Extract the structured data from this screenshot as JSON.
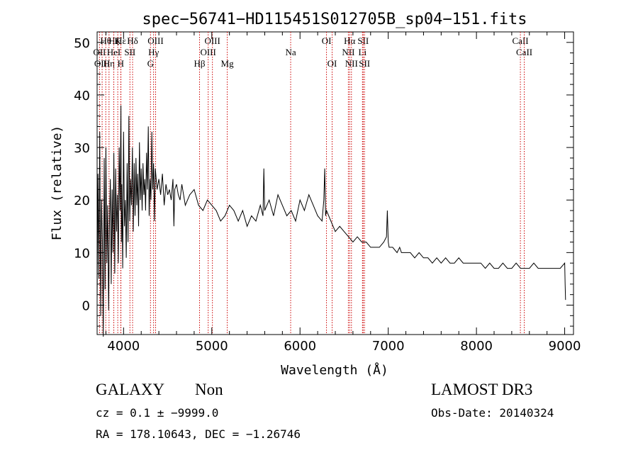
{
  "chart_data": {
    "type": "line",
    "title": "spec−56741−HD115451S012705B_sp04−151.fits",
    "xlabel": "Wavelength (Å)",
    "ylabel": "Flux (relative)",
    "xlim": [
      3700,
      9100
    ],
    "ylim": [
      -5.6,
      52
    ],
    "xticks": [
      4000,
      5000,
      6000,
      7000,
      8000,
      9000
    ],
    "xtick_labels": [
      "4000",
      "5000",
      "6000",
      "7000",
      "8000",
      "9000"
    ],
    "yticks": [
      0,
      10,
      20,
      30,
      40,
      50
    ],
    "ytick_labels": [
      "0",
      "10",
      "20",
      "30",
      "40",
      "50"
    ],
    "series": [
      {
        "name": "flux",
        "color": "#000000",
        "x": [
          3700,
          3710,
          3720,
          3730,
          3740,
          3750,
          3760,
          3770,
          3780,
          3790,
          3800,
          3810,
          3820,
          3830,
          3840,
          3850,
          3860,
          3870,
          3880,
          3890,
          3900,
          3910,
          3920,
          3930,
          3940,
          3950,
          3960,
          3970,
          3975,
          3980,
          3990,
          4000,
          4010,
          4020,
          4030,
          4040,
          4050,
          4060,
          4070,
          4080,
          4090,
          4100,
          4110,
          4120,
          4130,
          4140,
          4150,
          4160,
          4170,
          4180,
          4190,
          4200,
          4210,
          4220,
          4230,
          4240,
          4250,
          4260,
          4270,
          4280,
          4290,
          4300,
          4310,
          4320,
          4330,
          4340,
          4350,
          4360,
          4380,
          4400,
          4420,
          4440,
          4460,
          4480,
          4500,
          4520,
          4540,
          4560,
          4570,
          4580,
          4600,
          4620,
          4640,
          4660,
          4700,
          4750,
          4800,
          4850,
          4900,
          4950,
          5000,
          5050,
          5100,
          5150,
          5200,
          5250,
          5300,
          5350,
          5400,
          5450,
          5500,
          5550,
          5580,
          5590,
          5600,
          5650,
          5700,
          5750,
          5800,
          5850,
          5900,
          5950,
          6000,
          6050,
          6100,
          6150,
          6200,
          6250,
          6270,
          6280,
          6290,
          6300,
          6350,
          6400,
          6450,
          6500,
          6550,
          6600,
          6650,
          6700,
          6750,
          6800,
          6850,
          6900,
          6950,
          6980,
          6990,
          7000,
          7010,
          7050,
          7100,
          7130,
          7150,
          7200,
          7250,
          7300,
          7350,
          7400,
          7450,
          7500,
          7550,
          7600,
          7650,
          7700,
          7750,
          7800,
          7850,
          7900,
          7950,
          8000,
          8050,
          8100,
          8150,
          8200,
          8250,
          8300,
          8350,
          8400,
          8450,
          8500,
          8550,
          8600,
          8650,
          8700,
          8750,
          8800,
          8850,
          8900,
          8950,
          9000,
          9005,
          9010
        ],
        "y": [
          1,
          25,
          5,
          33,
          -2,
          20,
          12,
          -6,
          28,
          3,
          30,
          8,
          19,
          -1,
          15,
          24,
          4,
          22,
          10,
          29,
          6,
          26,
          14,
          21,
          8,
          30,
          18,
          38,
          12,
          23,
          7,
          33,
          15,
          20,
          9,
          27,
          12,
          36,
          16,
          24,
          19,
          30,
          14,
          27,
          17,
          28,
          19,
          25,
          15,
          31,
          20,
          26,
          18,
          27,
          21,
          24,
          18,
          29,
          22,
          34,
          17,
          24,
          20,
          33,
          22,
          27,
          16,
          26,
          22,
          24,
          21,
          25,
          19,
          23,
          21,
          22,
          20,
          24,
          15,
          22,
          23,
          21,
          20,
          23,
          19,
          21,
          22,
          19,
          18,
          20,
          19,
          18,
          16,
          17,
          19,
          18,
          16,
          18,
          15,
          17,
          16,
          19,
          17,
          26,
          18,
          20,
          17,
          21,
          19,
          17,
          18,
          16,
          20,
          18,
          21,
          19,
          17,
          16,
          20,
          26,
          17,
          18,
          16,
          14,
          15,
          14,
          13,
          12,
          13,
          12,
          12,
          11,
          11,
          11,
          12,
          13,
          18,
          12,
          11,
          11,
          10,
          11,
          10,
          10,
          10,
          9,
          10,
          9,
          9,
          8,
          9,
          8,
          9,
          8,
          8,
          9,
          8,
          8,
          8,
          8,
          8,
          7,
          8,
          7,
          7,
          8,
          7,
          7,
          8,
          7,
          7,
          7,
          8,
          7,
          7,
          7,
          7,
          7,
          7,
          8,
          4,
          1
        ]
      }
    ],
    "line_markers": [
      {
        "label": "OII",
        "wavelength": 3727,
        "row": 1
      },
      {
        "label": "OIII",
        "wavelength": 3757,
        "row": 2
      },
      {
        "label": "Hθ",
        "wavelength": 3798,
        "row": 0
      },
      {
        "label": "Hη",
        "wavelength": 3835,
        "row": 2
      },
      {
        "label": "Hζ",
        "wavelength": 3889,
        "row": 0
      },
      {
        "label": "HeI",
        "wavelength": 3889,
        "row": 1
      },
      {
        "label": "K",
        "wavelength": 3934,
        "row": 0
      },
      {
        "label": "H",
        "wavelength": 3968,
        "row": 2
      },
      {
        "label": "Hε",
        "wavelength": 3970,
        "row": 0
      },
      {
        "label": "SII",
        "wavelength": 4072,
        "row": 1
      },
      {
        "label": "Hδ",
        "wavelength": 4102,
        "row": 0
      },
      {
        "label": "Hγ",
        "wavelength": 4340,
        "row": 1
      },
      {
        "label": "G",
        "wavelength": 4305,
        "row": 2
      },
      {
        "label": "OIII",
        "wavelength": 4363,
        "row": 0
      },
      {
        "label": "Hβ",
        "wavelength": 4861,
        "row": 2
      },
      {
        "label": "OIII",
        "wavelength": 4959,
        "row": 1
      },
      {
        "label": "OIII",
        "wavelength": 5007,
        "row": 0
      },
      {
        "label": "Mg",
        "wavelength": 5175,
        "row": 2
      },
      {
        "label": "Na",
        "wavelength": 5894,
        "row": 1
      },
      {
        "label": "OI",
        "wavelength": 6300,
        "row": 0
      },
      {
        "label": "OI",
        "wavelength": 6364,
        "row": 2
      },
      {
        "label": "NII",
        "wavelength": 6548,
        "row": 1
      },
      {
        "label": "Hα",
        "wavelength": 6563,
        "row": 0
      },
      {
        "label": "NII",
        "wavelength": 6583,
        "row": 2
      },
      {
        "label": "Li",
        "wavelength": 6708,
        "row": 1
      },
      {
        "label": "SII",
        "wavelength": 6716,
        "row": 0
      },
      {
        "label": "SII",
        "wavelength": 6731,
        "row": 2
      },
      {
        "label": "CaII",
        "wavelength": 8498,
        "row": 0
      },
      {
        "label": "CaII",
        "wavelength": 8542,
        "row": 1
      }
    ],
    "marker_color": "#cc0000"
  },
  "footer": {
    "class_label": "GALAXY",
    "subclass_label": "Non",
    "survey_label": "LAMOST DR3",
    "cz_text": "cz = 0.1 ± −9999.0",
    "obs_date_text": "Obs-Date: 20140324",
    "coords_text": "RA = 178.10643, DEC =  −1.26746"
  }
}
